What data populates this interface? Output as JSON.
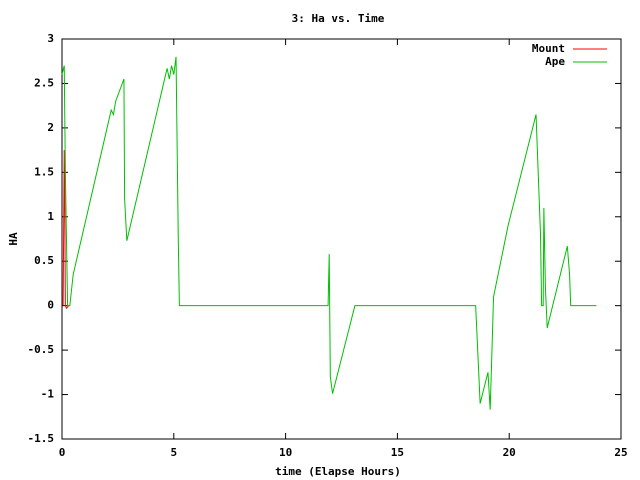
{
  "chart_data": {
    "type": "line",
    "title": "3: Ha vs. Time",
    "x_label": "time (Elapse Hours)",
    "y_label": "HA",
    "xlim": [
      0,
      25
    ],
    "xticks": [
      0,
      5,
      10,
      15,
      20,
      25
    ],
    "ylim": [
      -1.5,
      3
    ],
    "yticks": [
      3,
      2.5,
      2,
      1.5,
      1,
      0.5,
      0,
      -0.5,
      -1,
      -1.5
    ],
    "grid": false,
    "legend": "top-right",
    "series": [
      {
        "name": "Mount",
        "color": "#ff0000",
        "x": [
          0.05,
          0.1,
          0.12,
          0.15,
          0.2,
          0.3
        ],
        "values": [
          0,
          1.75,
          1.35,
          0,
          -0.03,
          0
        ]
      },
      {
        "name": "Ape",
        "color": "#00c000",
        "x": [
          0.0,
          0.1,
          0.15,
          0.25,
          0.35,
          0.5,
          2.2,
          2.3,
          2.4,
          2.77,
          2.8,
          2.9,
          4.7,
          4.8,
          4.9,
          5.0,
          5.1,
          5.2,
          5.25,
          11.9,
          11.95,
          12.0,
          12.1,
          13.1,
          18.5,
          18.7,
          19.05,
          19.15,
          19.3,
          19.95,
          21.2,
          21.4,
          21.45,
          21.52,
          21.55,
          21.62,
          21.7,
          22.6,
          22.7,
          22.75,
          23.9
        ],
        "values": [
          2.6,
          2.7,
          1.5,
          0.0,
          0.0,
          0.35,
          2.2,
          2.15,
          2.3,
          2.55,
          1.2,
          0.73,
          2.67,
          2.55,
          2.7,
          2.6,
          2.8,
          0.75,
          0,
          0,
          0.58,
          -0.8,
          -0.99,
          0,
          0,
          -1.1,
          -0.75,
          -1.17,
          0.1,
          0.9,
          2.15,
          0.8,
          0,
          0,
          1.1,
          0.2,
          -0.25,
          0.67,
          0.35,
          0,
          0
        ]
      }
    ]
  }
}
